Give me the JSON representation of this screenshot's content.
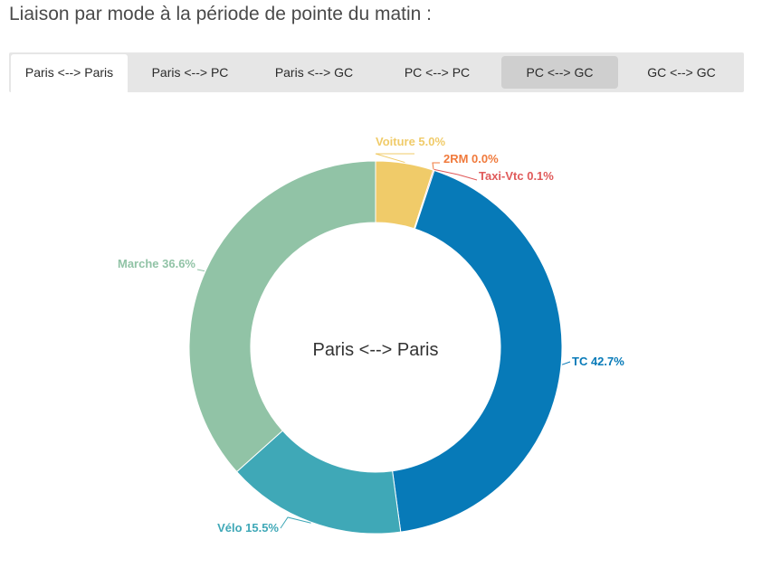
{
  "heading": "Liaison par mode à la période de pointe du matin :",
  "tabs": [
    {
      "label": "Paris <--> Paris",
      "state": "selected"
    },
    {
      "label": "Paris <--> PC",
      "state": "normal"
    },
    {
      "label": "Paris <--> GC",
      "state": "normal"
    },
    {
      "label": "PC <--> PC",
      "state": "normal"
    },
    {
      "label": "PC <--> GC",
      "state": "hover"
    },
    {
      "label": "GC <--> GC",
      "state": "normal"
    }
  ],
  "chart_data": {
    "type": "pie",
    "variant": "donut",
    "center_label": "Paris <--> Paris",
    "slices": [
      {
        "name": "Voiture",
        "value": 5.0,
        "label": "Voiture 5.0%",
        "color": "#f0cb69"
      },
      {
        "name": "2RM",
        "value": 0.0,
        "label": "2RM 0.0%",
        "color": "#f07a3c"
      },
      {
        "name": "Taxi-Vtc",
        "value": 0.1,
        "label": "Taxi-Vtc 0.1%",
        "color": "#e05a5a"
      },
      {
        "name": "TC",
        "value": 42.7,
        "label": "TC 42.7%",
        "color": "#077ab8"
      },
      {
        "name": "Vélo",
        "value": 15.5,
        "label": "Vélo 15.5%",
        "color": "#3fa8b7"
      },
      {
        "name": "Marche",
        "value": 36.6,
        "label": "Marche 36.6%",
        "color": "#91c3a6"
      }
    ]
  }
}
